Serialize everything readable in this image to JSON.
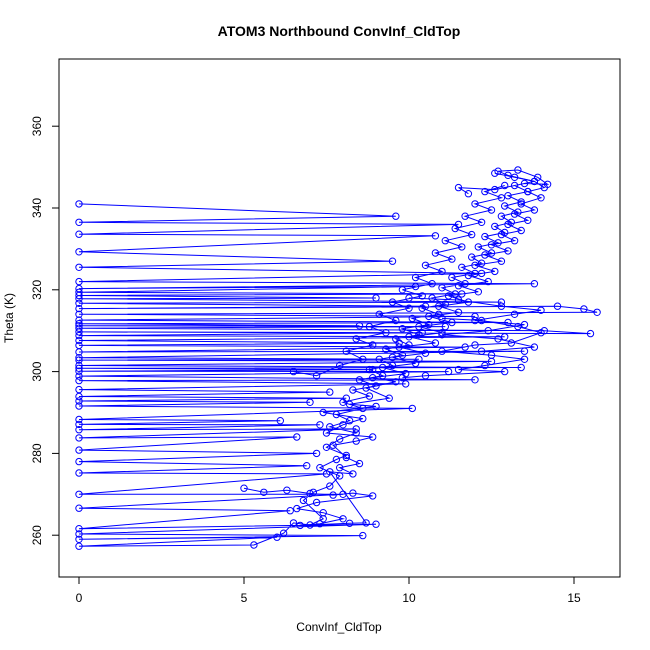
{
  "chart_data": {
    "type": "line",
    "title": "ATOM3 Northbound ConvInf_CldTop",
    "xlabel": "ConvInf_CldTop",
    "ylabel": "Theta (K)",
    "xlim": [
      0,
      16
    ],
    "ylim": [
      250,
      375
    ],
    "x_ticks": [
      "0",
      "5",
      "10",
      "15"
    ],
    "y_ticks": [
      "260",
      "280",
      "300",
      "320",
      "340",
      "360"
    ],
    "grid": false,
    "legend": "none",
    "marker": "open-circle",
    "color": "#0000ff",
    "series": [
      {
        "points": [
          [
            0,
            341.0
          ],
          [
            9.6,
            338.0
          ],
          [
            0,
            336.5
          ],
          [
            11.5,
            336.0
          ],
          [
            0,
            333.6
          ],
          [
            10.8,
            333.2
          ],
          [
            0,
            329.3
          ],
          [
            9.5,
            327.0
          ],
          [
            0,
            325.5
          ],
          [
            12.2,
            324.0
          ],
          [
            0,
            322.0
          ],
          [
            13.8,
            321.5
          ],
          [
            0,
            320.3
          ],
          [
            10.2,
            320.8
          ],
          [
            0,
            319.4
          ],
          [
            11.6,
            319.0
          ],
          [
            0,
            318.6
          ],
          [
            9.0,
            318.0
          ],
          [
            0,
            317.8
          ],
          [
            12.8,
            317.0
          ],
          [
            0,
            316.7
          ],
          [
            10.5,
            316.0
          ],
          [
            0,
            315.4
          ],
          [
            14.5,
            316.0
          ],
          [
            15.3,
            315.3
          ],
          [
            15.7,
            314.5
          ],
          [
            0,
            314.0
          ],
          [
            12.0,
            313.5
          ],
          [
            0,
            312.6
          ],
          [
            13.0,
            312.0
          ],
          [
            0,
            311.7
          ],
          [
            8.5,
            311.2
          ],
          [
            0,
            311.2
          ],
          [
            11.1,
            311.0
          ],
          [
            0,
            310.6
          ],
          [
            14.1,
            310.0
          ],
          [
            15.5,
            309.3
          ],
          [
            0,
            309.7
          ],
          [
            10.4,
            309.5
          ],
          [
            0,
            308.8
          ],
          [
            12.9,
            308.5
          ],
          [
            0,
            307.6
          ],
          [
            9.7,
            307.0
          ],
          [
            0,
            306.4
          ],
          [
            11.7,
            306.0
          ],
          [
            0,
            304.8
          ],
          [
            13.5,
            305.0
          ],
          [
            0,
            303.4
          ],
          [
            10.3,
            303.0
          ],
          [
            0,
            302.8
          ],
          [
            12.5,
            302.5
          ],
          [
            0,
            301.5
          ],
          [
            13.4,
            301.0
          ],
          [
            0,
            300.8
          ],
          [
            8.9,
            300.5
          ],
          [
            0,
            300.1
          ],
          [
            11.2,
            300.0
          ],
          [
            0,
            298.9
          ],
          [
            12.0,
            298.0
          ],
          [
            0,
            297.8
          ],
          [
            9.9,
            297.0
          ],
          [
            0,
            295.6
          ],
          [
            7.6,
            295.0
          ],
          [
            0,
            293.9
          ],
          [
            8.1,
            293.5
          ],
          [
            0,
            292.8
          ],
          [
            7.0,
            292.5
          ],
          [
            0,
            291.6
          ],
          [
            10.1,
            291.0
          ],
          [
            0,
            288.3
          ],
          [
            6.1,
            288.0
          ],
          [
            0,
            287.1
          ],
          [
            7.3,
            287.0
          ],
          [
            0,
            285.8
          ],
          [
            8.4,
            286.0
          ],
          [
            0,
            283.8
          ],
          [
            6.6,
            284.0
          ],
          [
            0,
            280.8
          ],
          [
            7.2,
            280.0
          ],
          [
            0,
            278.0
          ],
          [
            6.9,
            277.0
          ],
          [
            0,
            275.2
          ],
          [
            7.5,
            275.0
          ],
          [
            0,
            270.0
          ],
          [
            8.0,
            270.0
          ],
          [
            0,
            266.6
          ],
          [
            6.4,
            266.0
          ],
          [
            0,
            261.6
          ],
          [
            9.0,
            262.7
          ],
          [
            0,
            260.3
          ],
          [
            8.6,
            259.9
          ],
          [
            0,
            259.0
          ],
          [
            6.0,
            259.5
          ],
          [
            0,
            257.3
          ],
          [
            5.3,
            257.6
          ],
          [
            6.2,
            260.5
          ],
          [
            6.5,
            263.0
          ],
          [
            7.0,
            262.5
          ],
          [
            7.4,
            264.0
          ],
          [
            6.8,
            268.5
          ],
          [
            7.1,
            270.5
          ],
          [
            7.6,
            272.0
          ],
          [
            7.9,
            274.5
          ],
          [
            7.3,
            276.5
          ],
          [
            7.8,
            278.5
          ],
          [
            8.1,
            279.5
          ],
          [
            7.5,
            281.5
          ],
          [
            7.9,
            283.5
          ],
          [
            8.4,
            285.0
          ],
          [
            7.6,
            286.5
          ],
          [
            8.2,
            288.0
          ],
          [
            7.8,
            289.5
          ],
          [
            8.6,
            291.0
          ],
          [
            8.0,
            292.5
          ],
          [
            8.8,
            294.0
          ],
          [
            8.3,
            295.5
          ],
          [
            9.0,
            296.5
          ],
          [
            8.5,
            298.0
          ],
          [
            9.2,
            299.0
          ],
          [
            8.8,
            300.5
          ],
          [
            9.5,
            301.5
          ],
          [
            9.1,
            303.0
          ],
          [
            9.8,
            304.0
          ],
          [
            9.3,
            305.5
          ],
          [
            10.0,
            306.5
          ],
          [
            9.6,
            308.0
          ],
          [
            10.3,
            309.0
          ],
          [
            9.8,
            310.5
          ],
          [
            10.6,
            311.5
          ],
          [
            10.1,
            313.0
          ],
          [
            10.9,
            314.0
          ],
          [
            10.4,
            315.5
          ],
          [
            11.1,
            316.5
          ],
          [
            10.7,
            318.0
          ],
          [
            11.4,
            319.0
          ],
          [
            11.0,
            320.5
          ],
          [
            11.7,
            321.5
          ],
          [
            11.3,
            323.0
          ],
          [
            12.0,
            324.0
          ],
          [
            11.6,
            325.5
          ],
          [
            12.2,
            326.5
          ],
          [
            11.9,
            328.0
          ],
          [
            12.5,
            329.0
          ],
          [
            12.1,
            330.5
          ],
          [
            12.7,
            331.5
          ],
          [
            12.3,
            333.0
          ],
          [
            12.9,
            334.0
          ],
          [
            12.6,
            335.5
          ],
          [
            13.1,
            336.5
          ],
          [
            12.8,
            338.0
          ],
          [
            13.3,
            339.0
          ],
          [
            12.9,
            340.5
          ],
          [
            13.4,
            341.5
          ],
          [
            13.0,
            343.0
          ],
          [
            13.6,
            344.0
          ],
          [
            13.2,
            345.5
          ],
          [
            13.8,
            346.5
          ],
          [
            13.0,
            348.0
          ],
          [
            12.7,
            349.0
          ],
          [
            13.3,
            349.3
          ],
          [
            13.9,
            347.5
          ],
          [
            14.2,
            345.8
          ],
          [
            13.5,
            346.0
          ],
          [
            12.6,
            344.5
          ],
          [
            11.5,
            345.0
          ],
          [
            11.8,
            343.5
          ]
        ]
      },
      {
        "points": [
          [
            5.0,
            271.5
          ],
          [
            5.6,
            270.5
          ],
          [
            6.3,
            271.0
          ],
          [
            7.0,
            270.2
          ],
          [
            7.7,
            269.8
          ],
          [
            8.3,
            270.3
          ],
          [
            8.9,
            269.6
          ],
          [
            7.2,
            268.0
          ],
          [
            6.6,
            266.5
          ],
          [
            7.4,
            265.5
          ],
          [
            8.0,
            264.0
          ],
          [
            7.3,
            262.8
          ],
          [
            6.7,
            262.4
          ],
          [
            8.2,
            262.9
          ],
          [
            8.7,
            263.0
          ],
          [
            7.6,
            275.5
          ],
          [
            8.3,
            275.0
          ],
          [
            7.9,
            276.5
          ],
          [
            8.5,
            277.5
          ],
          [
            8.1,
            279.0
          ],
          [
            7.7,
            282.0
          ],
          [
            8.4,
            283.0
          ],
          [
            8.9,
            284.0
          ],
          [
            7.5,
            285.0
          ],
          [
            8.0,
            287.0
          ],
          [
            8.6,
            288.5
          ],
          [
            7.4,
            290.0
          ],
          [
            9.0,
            291.5
          ],
          [
            8.2,
            292.0
          ],
          [
            9.4,
            293.5
          ],
          [
            8.7,
            296.0
          ],
          [
            9.6,
            297.5
          ],
          [
            8.9,
            298.5
          ],
          [
            9.9,
            299.5
          ],
          [
            9.2,
            301.0
          ],
          [
            10.2,
            302.0
          ],
          [
            9.5,
            303.5
          ],
          [
            10.5,
            304.5
          ],
          [
            9.7,
            306.0
          ],
          [
            10.8,
            307.0
          ],
          [
            10.0,
            308.5
          ],
          [
            11.0,
            309.5
          ],
          [
            10.3,
            311.0
          ],
          [
            11.3,
            312.0
          ],
          [
            10.6,
            313.5
          ],
          [
            11.5,
            314.5
          ],
          [
            10.9,
            316.0
          ],
          [
            11.8,
            317.0
          ],
          [
            11.2,
            318.5
          ],
          [
            12.1,
            319.5
          ],
          [
            11.5,
            321.0
          ],
          [
            12.4,
            322.0
          ],
          [
            11.8,
            323.5
          ],
          [
            12.6,
            324.5
          ],
          [
            12.0,
            326.0
          ],
          [
            12.8,
            327.0
          ],
          [
            12.3,
            328.5
          ],
          [
            13.0,
            329.5
          ],
          [
            12.5,
            331.0
          ],
          [
            13.2,
            332.0
          ],
          [
            12.8,
            333.5
          ],
          [
            13.4,
            334.5
          ],
          [
            13.0,
            336.0
          ],
          [
            13.6,
            337.0
          ],
          [
            13.2,
            338.5
          ],
          [
            13.8,
            339.5
          ],
          [
            13.4,
            341.0
          ],
          [
            14.0,
            342.5
          ],
          [
            13.6,
            344.0
          ],
          [
            14.1,
            345.0
          ],
          [
            13.8,
            346.5
          ],
          [
            13.2,
            347.5
          ],
          [
            12.6,
            348.5
          ]
        ]
      },
      {
        "points": [
          [
            6.5,
            300.0
          ],
          [
            7.2,
            299.0
          ],
          [
            7.9,
            301.5
          ],
          [
            8.6,
            303.0
          ],
          [
            8.1,
            305.0
          ],
          [
            8.9,
            306.5
          ],
          [
            8.4,
            308.0
          ],
          [
            9.3,
            309.5
          ],
          [
            8.8,
            311.0
          ],
          [
            9.6,
            312.5
          ],
          [
            9.1,
            314.0
          ],
          [
            10.0,
            315.5
          ],
          [
            9.5,
            317.0
          ],
          [
            10.4,
            318.5
          ],
          [
            9.8,
            320.0
          ],
          [
            10.7,
            321.5
          ],
          [
            10.2,
            323.0
          ],
          [
            11.0,
            324.5
          ],
          [
            10.5,
            326.0
          ],
          [
            11.3,
            327.5
          ],
          [
            10.8,
            329.0
          ],
          [
            11.6,
            330.5
          ],
          [
            11.1,
            332.0
          ],
          [
            11.9,
            333.5
          ],
          [
            11.4,
            335.0
          ],
          [
            12.2,
            336.5
          ],
          [
            11.7,
            338.0
          ],
          [
            12.5,
            339.5
          ],
          [
            12.0,
            341.0
          ],
          [
            12.8,
            342.5
          ],
          [
            12.3,
            344.0
          ],
          [
            12.9,
            345.5
          ]
        ]
      },
      {
        "points": [
          [
            11.0,
            313.0
          ],
          [
            12.2,
            312.5
          ],
          [
            13.3,
            311.0
          ],
          [
            14.0,
            309.5
          ],
          [
            13.1,
            307.0
          ],
          [
            12.0,
            306.5
          ],
          [
            11.0,
            305.0
          ],
          [
            12.5,
            304.0
          ],
          [
            13.5,
            303.0
          ],
          [
            12.3,
            301.5
          ],
          [
            11.5,
            300.5
          ],
          [
            12.9,
            300.0
          ],
          [
            10.5,
            299.0
          ],
          [
            9.8,
            298.5
          ]
        ]
      },
      {
        "points": [
          [
            10.0,
            318.0
          ],
          [
            11.5,
            317.5
          ],
          [
            12.8,
            316.0
          ],
          [
            14.0,
            315.0
          ],
          [
            13.2,
            314.0
          ],
          [
            12.0,
            312.5
          ],
          [
            13.5,
            311.5
          ],
          [
            12.4,
            310.0
          ],
          [
            11.0,
            309.0
          ],
          [
            12.7,
            308.0
          ],
          [
            13.8,
            306.0
          ],
          [
            12.2,
            305.0
          ]
        ]
      }
    ]
  }
}
